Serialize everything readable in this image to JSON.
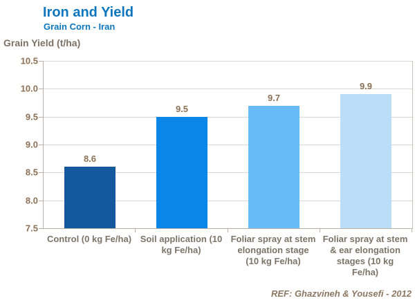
{
  "header": {
    "title": "Iron and Yield",
    "subtitle": "Grain Corn - Iran"
  },
  "ref_text": "REF: Ghazvineh & Yousefi - 2012",
  "colors": {
    "title_blue": "#0d76be",
    "bars": [
      "#14599e",
      "#0a86e8",
      "#67bcf7",
      "#bcddf8"
    ],
    "gridline": "#d9d5cf",
    "axis_line": "#b9b1a7",
    "value_label": "#8c7156",
    "category_label": "#7c7468",
    "ref_text": "#8c7862",
    "background": "#ffffff"
  },
  "chart_data": {
    "type": "bar",
    "title": "Iron and Yield",
    "subtitle": "Grain Corn - Iran",
    "ylabel": "Grain Yield (t/ha)",
    "xlabel": "",
    "categories": [
      "Control (0 kg Fe/ha)",
      "Soil application (10 kg Fe/ha)",
      "Foliar spray at stem elongation stage (10 kg Fe/ha)",
      "Foliar spray at stem & ear elongation stages (10 kg Fe/ha)"
    ],
    "values": [
      8.6,
      9.5,
      9.7,
      9.9
    ],
    "value_labels": [
      "8.6",
      "9.5",
      "9.7",
      "9.9"
    ],
    "ylim": [
      7.5,
      10.5
    ],
    "ytick_step": 0.5,
    "ytick_labels": [
      "7.5",
      "8.0",
      "8.5",
      "9.0",
      "9.5",
      "10.0",
      "10.5"
    ],
    "grid": true,
    "legend_position": "none"
  }
}
